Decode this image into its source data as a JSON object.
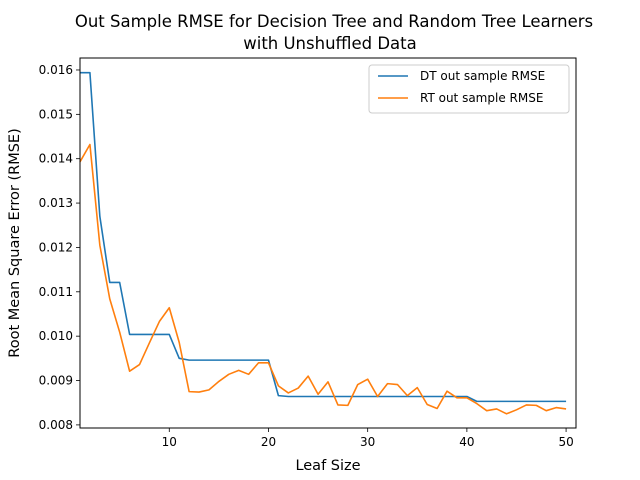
{
  "chart_data": {
    "type": "line",
    "title_line1": "Out Sample RMSE for Decision Tree and Random Tree Learners",
    "title_line2": "with Unshuffled Data",
    "xlabel": "Leaf Size",
    "ylabel": "Root Mean Square Error (RMSE)",
    "xlim": [
      1,
      51
    ],
    "ylim": [
      0.00793,
      0.01627
    ],
    "xticks": [
      10,
      20,
      30,
      40,
      50
    ],
    "yticks": [
      0.008,
      0.009,
      0.01,
      0.011,
      0.012,
      0.013,
      0.014,
      0.015,
      0.016
    ],
    "ytick_labels": [
      "0.008",
      "0.009",
      "0.010",
      "0.011",
      "0.012",
      "0.013",
      "0.014",
      "0.015",
      "0.016"
    ],
    "legend_position": "upper-right",
    "x": [
      1,
      2,
      3,
      4,
      5,
      6,
      7,
      8,
      9,
      10,
      11,
      12,
      13,
      14,
      15,
      16,
      17,
      18,
      19,
      20,
      21,
      22,
      23,
      24,
      25,
      26,
      27,
      28,
      29,
      30,
      31,
      32,
      33,
      34,
      35,
      36,
      37,
      38,
      39,
      40,
      41,
      42,
      43,
      44,
      45,
      46,
      47,
      48,
      49,
      50
    ],
    "series": [
      {
        "name": "DT out sample RMSE",
        "color": "#1f77b4",
        "values": [
          0.01594,
          0.01594,
          0.0127,
          0.01121,
          0.01121,
          0.01004,
          0.01004,
          0.01004,
          0.01004,
          0.01004,
          0.0095,
          0.00946,
          0.00946,
          0.00946,
          0.00946,
          0.00946,
          0.00946,
          0.00946,
          0.00946,
          0.00946,
          0.00866,
          0.00864,
          0.00864,
          0.00864,
          0.00864,
          0.00864,
          0.00864,
          0.00864,
          0.00864,
          0.00864,
          0.00864,
          0.00864,
          0.00864,
          0.00864,
          0.00864,
          0.00864,
          0.00864,
          0.00864,
          0.00864,
          0.00864,
          0.00853,
          0.00853,
          0.00853,
          0.00853,
          0.00853,
          0.00853,
          0.00853,
          0.00853,
          0.00853,
          0.00853
        ]
      },
      {
        "name": "RT out sample RMSE",
        "color": "#ff7f0e",
        "values": [
          0.01393,
          0.01432,
          0.01205,
          0.01084,
          0.01009,
          0.00921,
          0.00936,
          0.00985,
          0.01033,
          0.01064,
          0.00986,
          0.00875,
          0.00874,
          0.00879,
          0.00898,
          0.00914,
          0.00923,
          0.00914,
          0.0094,
          0.0094,
          0.00888,
          0.00872,
          0.00883,
          0.0091,
          0.00869,
          0.00897,
          0.00845,
          0.00844,
          0.00891,
          0.00903,
          0.00864,
          0.00893,
          0.00891,
          0.00866,
          0.00884,
          0.00846,
          0.00837,
          0.00876,
          0.00861,
          0.00861,
          0.00848,
          0.00832,
          0.00836,
          0.00825,
          0.00834,
          0.00845,
          0.00844,
          0.00832,
          0.00839,
          0.00836
        ]
      }
    ]
  }
}
